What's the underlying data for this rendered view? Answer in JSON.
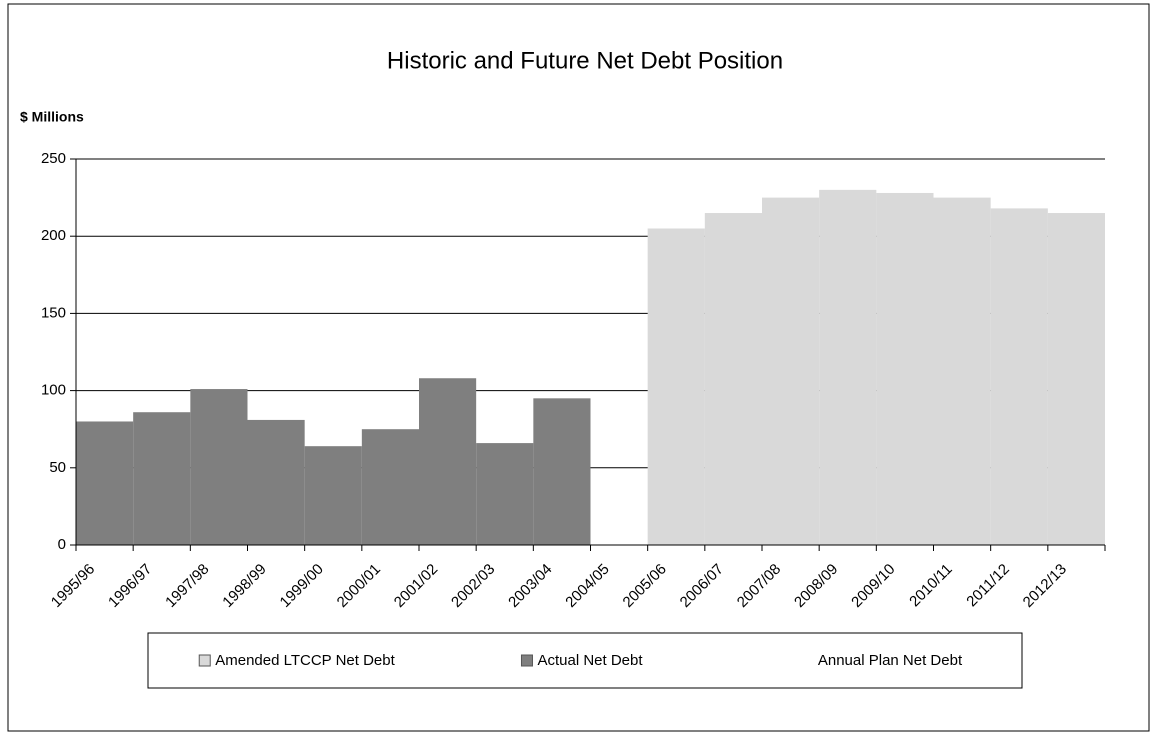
{
  "chart_data": {
    "type": "bar",
    "title": "Historic and Future Net Debt Position",
    "y_label": "$ Millions",
    "categories": [
      "1995/96",
      "1996/97",
      "1997/98",
      "1998/99",
      "1999/00",
      "2000/01",
      "2001/02",
      "2002/03",
      "2003/04",
      "2004/05",
      "2005/06",
      "2006/07",
      "2007/08",
      "2008/09",
      "2009/10",
      "2010/11",
      "2011/12",
      "2012/13"
    ],
    "series": [
      {
        "name": "Amended LTCCP Net Debt",
        "color": "#d9d9d9",
        "values": [
          null,
          null,
          null,
          null,
          null,
          null,
          null,
          null,
          null,
          null,
          205,
          215,
          225,
          230,
          228,
          225,
          218,
          215
        ]
      },
      {
        "name": "Actual Net Debt",
        "color": "#7f7f7f",
        "values": [
          80,
          86,
          101,
          81,
          64,
          75,
          108,
          66,
          95,
          null,
          null,
          null,
          null,
          null,
          null,
          null,
          null,
          null
        ]
      },
      {
        "name": "Annual Plan Net Debt",
        "color": "#ffffff",
        "values": [
          null,
          null,
          null,
          null,
          null,
          null,
          null,
          null,
          null,
          null,
          null,
          null,
          null,
          null,
          null,
          null,
          null,
          null
        ]
      }
    ],
    "ylim": [
      0,
      250
    ],
    "yticks": [
      0,
      50,
      100,
      150,
      200,
      250
    ],
    "grid": true
  }
}
